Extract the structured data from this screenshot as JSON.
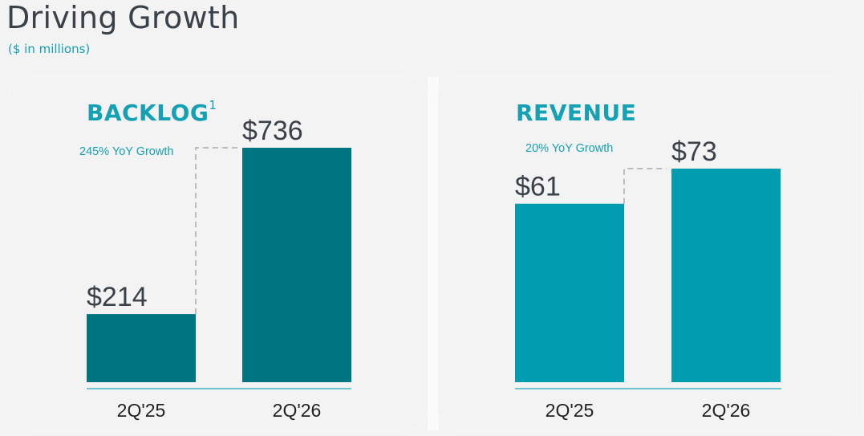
{
  "page": {
    "title": "Driving Growth",
    "subtitle": "($ in millions)"
  },
  "colors": {
    "accent": "#14a1b4",
    "backlog_bar": "#007582",
    "revenue_bar": "#009cb0",
    "connector": "#aaaaaa",
    "axis": "#3fb4c6"
  },
  "chart_data": [
    {
      "type": "bar",
      "title": "BACKLOG",
      "title_footnote": "1",
      "categories": [
        "2Q'25",
        "2Q'26"
      ],
      "values": [
        214,
        736
      ],
      "value_labels": [
        "$214",
        "$736"
      ],
      "annotation": "245% YoY Growth",
      "xlabel": "",
      "ylabel": "",
      "ylim": [
        0,
        736
      ],
      "grid": false,
      "legend": "none"
    },
    {
      "type": "bar",
      "title": "REVENUE",
      "categories": [
        "2Q'25",
        "2Q'26"
      ],
      "values": [
        61,
        73
      ],
      "value_labels": [
        "$61",
        "$73"
      ],
      "annotation": "20% YoY Growth",
      "xlabel": "",
      "ylabel": "",
      "ylim": [
        0,
        73
      ],
      "grid": false,
      "legend": "none"
    }
  ]
}
